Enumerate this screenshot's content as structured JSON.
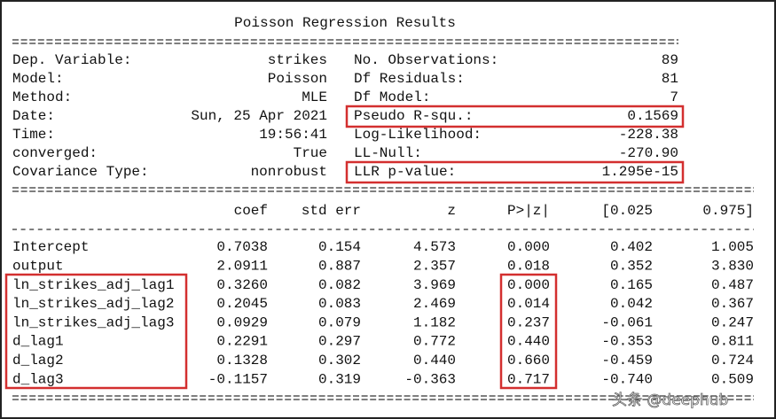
{
  "title": "Poisson Regression Results",
  "header": {
    "rows": [
      [
        "Dep. Variable:",
        "strikes",
        "No. Observations:",
        "89"
      ],
      [
        "Model:",
        "Poisson",
        "Df Residuals:",
        "81"
      ],
      [
        "Method:",
        "MLE",
        "Df Model:",
        "7"
      ],
      [
        "Date:",
        "Sun, 25 Apr 2021",
        "Pseudo R-squ.:",
        "0.1569"
      ],
      [
        "Time:",
        "19:56:41",
        "Log-Likelihood:",
        "-228.38"
      ],
      [
        "converged:",
        "True",
        "LL-Null:",
        "-270.90"
      ],
      [
        "Covariance Type:",
        "nonrobust",
        "LLR p-value:",
        "1.295e-15"
      ]
    ]
  },
  "table": {
    "columns": [
      "coef",
      "std err",
      "z",
      "P>|z|",
      "[0.025",
      "0.975]"
    ],
    "rows": [
      [
        "Intercept",
        "0.7038",
        "0.154",
        "4.573",
        "0.000",
        "0.402",
        "1.005"
      ],
      [
        "output",
        "2.0911",
        "0.887",
        "2.357",
        "0.018",
        "0.352",
        "3.830"
      ],
      [
        "ln_strikes_adj_lag1",
        "0.3260",
        "0.082",
        "3.969",
        "0.000",
        "0.165",
        "0.487"
      ],
      [
        "ln_strikes_adj_lag2",
        "0.2045",
        "0.083",
        "2.469",
        "0.014",
        "0.042",
        "0.367"
      ],
      [
        "ln_strikes_adj_lag3",
        "0.0929",
        "0.079",
        "1.182",
        "0.237",
        "-0.061",
        "0.247"
      ],
      [
        "d_lag1",
        "0.2291",
        "0.297",
        "0.772",
        "0.440",
        "-0.353",
        "0.811"
      ],
      [
        "d_lag2",
        "0.1328",
        "0.302",
        "0.440",
        "0.660",
        "-0.459",
        "0.724"
      ],
      [
        "d_lag3",
        "-0.1157",
        "0.319",
        "-0.363",
        "0.717",
        "-0.740",
        "0.509"
      ]
    ]
  },
  "watermark": "头条 @deephub"
}
